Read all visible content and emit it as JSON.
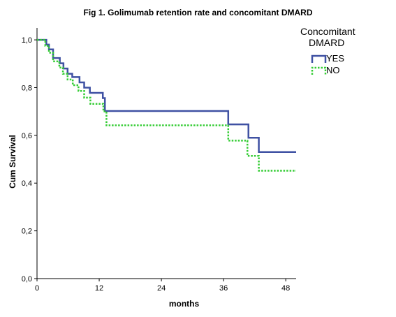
{
  "chart_data": {
    "type": "line",
    "title": "Fig 1. Golimumab retention rate and concomitant DMARD",
    "xlabel": "months",
    "ylabel": "Cum Survival",
    "xlim": [
      0,
      50
    ],
    "ylim": [
      0,
      1.05
    ],
    "x_ticks": [
      0,
      12,
      24,
      36,
      48
    ],
    "x_tick_labels": [
      "0",
      "12",
      "24",
      "36",
      "48"
    ],
    "y_ticks": [
      0,
      0.2,
      0.4,
      0.6,
      0.8,
      1.0
    ],
    "y_tick_labels": [
      "0,0",
      "0,2",
      "0,4",
      "0,6",
      "0,8",
      "1,0"
    ],
    "grid": false,
    "legend": {
      "title_lines": [
        "Concomitant",
        "DMARD"
      ],
      "placement": "top-right, outside plot"
    },
    "series": [
      {
        "name": "YES",
        "color": "#3f51a3",
        "style": "solid",
        "step": true,
        "x": [
          0,
          1.8,
          2.3,
          3.1,
          4.4,
          5.1,
          5.9,
          6.8,
          8.2,
          9.1,
          10.2,
          12.7,
          13.1,
          36.9,
          40.8,
          42.8,
          48
        ],
        "y": [
          1.0,
          0.98,
          0.96,
          0.924,
          0.902,
          0.88,
          0.858,
          0.844,
          0.822,
          0.8,
          0.778,
          0.756,
          0.702,
          0.646,
          0.59,
          0.53,
          0.53
        ]
      },
      {
        "name": "NO",
        "color": "#33cc33",
        "style": "dotted",
        "step": true,
        "x": [
          0,
          1.6,
          2.3,
          3.1,
          4.3,
          5.0,
          5.9,
          6.9,
          8.0,
          9.1,
          10.3,
          12.8,
          13.4,
          36.9,
          40.6,
          42.8,
          48
        ],
        "y": [
          1.0,
          0.975,
          0.946,
          0.91,
          0.884,
          0.858,
          0.834,
          0.81,
          0.786,
          0.758,
          0.732,
          0.7,
          0.642,
          0.578,
          0.514,
          0.452,
          0.452
        ]
      }
    ]
  }
}
